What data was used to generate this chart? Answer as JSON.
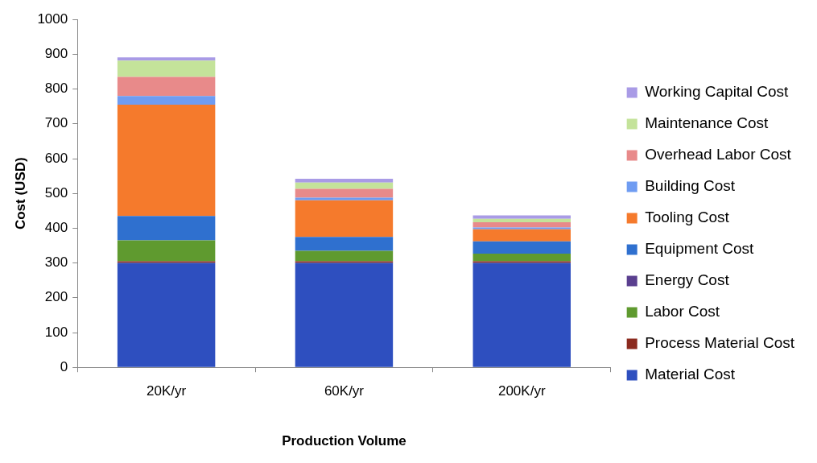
{
  "chart_data": {
    "type": "bar",
    "stacked": true,
    "xlabel": "Production Volume",
    "ylabel": "Cost (USD)",
    "categories": [
      "20K/yr",
      "60K/yr",
      "200K/yr"
    ],
    "ylim": [
      0,
      1000
    ],
    "yticks": [
      0,
      100,
      200,
      300,
      400,
      500,
      600,
      700,
      800,
      900,
      1000
    ],
    "grid": false,
    "legend": "right",
    "series": [
      {
        "name": "Material Cost",
        "color": "#2e4fbf",
        "values": [
          300,
          300,
          300
        ]
      },
      {
        "name": "Process Material Cost",
        "color": "#8b2a1e",
        "values": [
          5,
          5,
          5
        ]
      },
      {
        "name": "Labor Cost",
        "color": "#5f9a2f",
        "values": [
          60,
          30,
          22
        ]
      },
      {
        "name": "Energy Cost",
        "color": "#5a3f8f",
        "values": [
          null,
          null,
          null
        ]
      },
      {
        "name": "Equipment Cost",
        "color": "#2f70cf",
        "values": [
          70,
          40,
          35
        ]
      },
      {
        "name": "Tooling Cost",
        "color": "#f57a2c",
        "values": [
          320,
          105,
          35
        ]
      },
      {
        "name": "Building Cost",
        "color": "#6f9cf2",
        "values": [
          25,
          8,
          5
        ]
      },
      {
        "name": "Overhead Labor Cost",
        "color": "#e88a8a",
        "values": [
          55,
          25,
          15
        ]
      },
      {
        "name": "Maintenance Cost",
        "color": "#c4e39a",
        "values": [
          47,
          18,
          10
        ]
      },
      {
        "name": "Working Capital Cost",
        "color": "#a99be6",
        "values": [
          9,
          11,
          10
        ]
      }
    ]
  }
}
